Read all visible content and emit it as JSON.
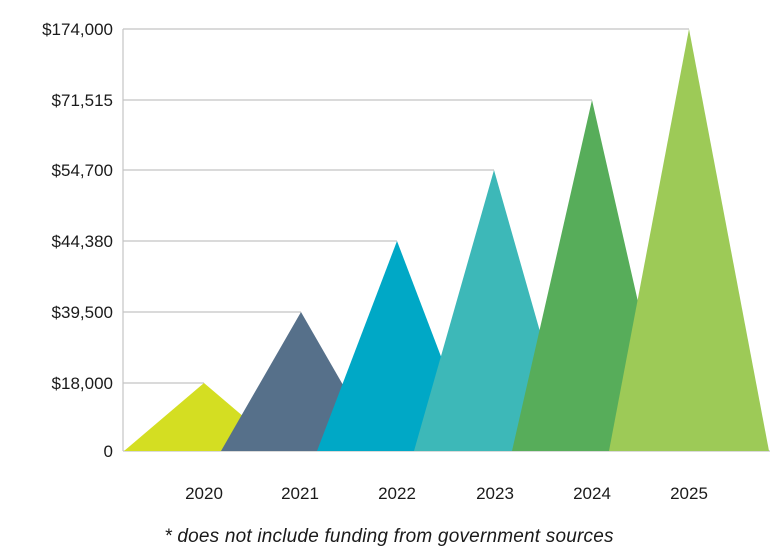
{
  "chart_data": {
    "type": "area",
    "categories": [
      "2020",
      "2021",
      "2022",
      "2023",
      "2024",
      "2025"
    ],
    "values": [
      18000,
      39500,
      44380,
      54700,
      71515,
      174000
    ],
    "y_tick_labels": [
      "0",
      "$18,000",
      "$39,500",
      "$44,380",
      "$54,700",
      "$71,515",
      "$174,000"
    ],
    "colors": [
      "#d4de22",
      "#56708a",
      "#00a8c6",
      "#3db8b8",
      "#57ad5a",
      "#9dca57"
    ],
    "grid": true,
    "note": "* does not include funding from government sources"
  }
}
